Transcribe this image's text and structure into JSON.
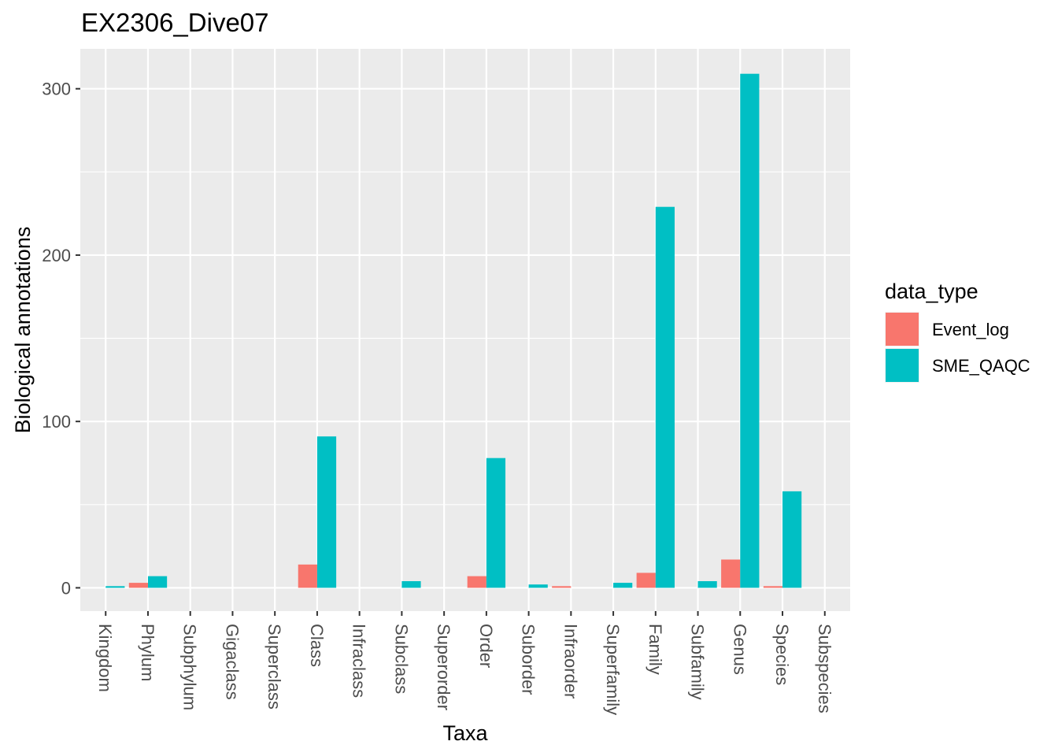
{
  "chart_data": {
    "type": "bar",
    "title": "EX2306_Dive07",
    "xlabel": "Taxa",
    "ylabel": "Biological annotations",
    "ylim": [
      -14,
      324
    ],
    "yticks": [
      0,
      100,
      200,
      300
    ],
    "grid": true,
    "legend_position": "right",
    "legend_title": "data_type",
    "categories": [
      "Kingdom",
      "Phylum",
      "Subphylum",
      "Gigaclass",
      "Superclass",
      "Class",
      "Infraclass",
      "Subclass",
      "Superorder",
      "Order",
      "Suborder",
      "Infraorder",
      "Superfamily",
      "Family",
      "Subfamily",
      "Genus",
      "Species",
      "Subspecies"
    ],
    "series": [
      {
        "name": "Event_log",
        "color": "#F8766D",
        "values": [
          0,
          3,
          0,
          0,
          0,
          14,
          0,
          0,
          0,
          7,
          0,
          1,
          0,
          9,
          0,
          17,
          1,
          0
        ]
      },
      {
        "name": "SME_QAQC",
        "color": "#00BFC4",
        "values": [
          1,
          7,
          0,
          0,
          0,
          91,
          0,
          4,
          0,
          78,
          2,
          0,
          3,
          229,
          4,
          309,
          58,
          0
        ]
      }
    ]
  }
}
